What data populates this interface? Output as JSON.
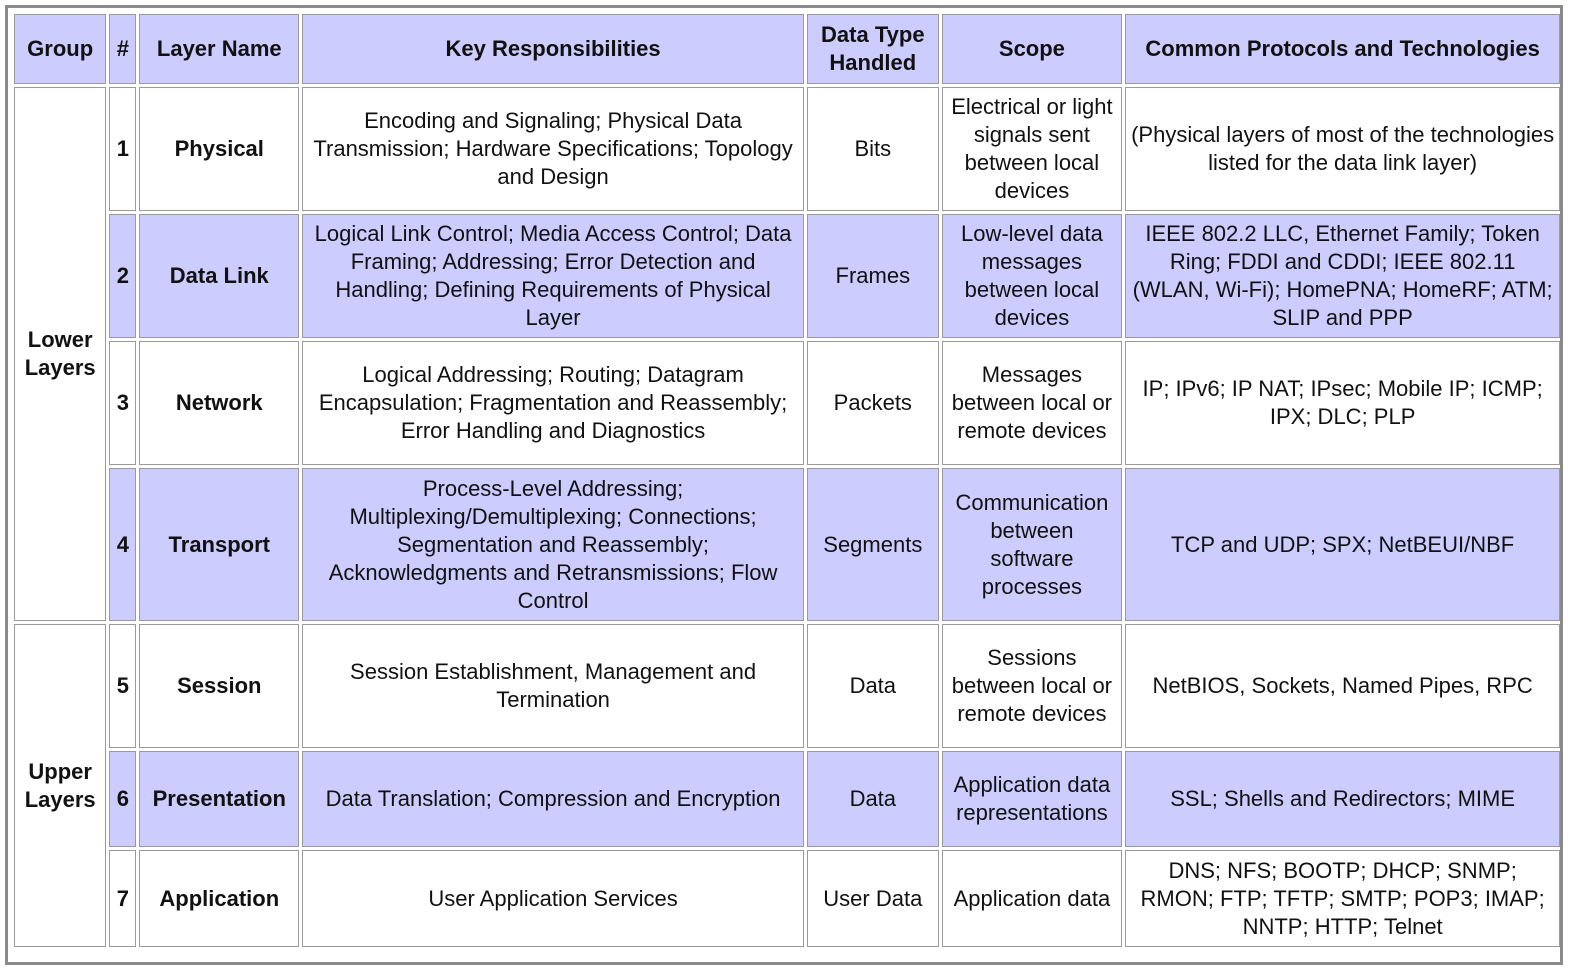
{
  "table": {
    "header": [
      "Group",
      "#",
      "Layer Name",
      "Key Responsibilities",
      "Data Type Handled",
      "Scope",
      "Common Protocols and Technologies"
    ],
    "groups": [
      {
        "label": "Lower Layers",
        "rows": [
          [
            "1",
            "Physical",
            "Encoding and Signaling; Physical Data Transmission; Hardware Specifications; Topology and Design",
            "Bits",
            "Electrical or light signals sent between local devices",
            "(Physical layers of most of the technologies listed for the data link layer)"
          ],
          [
            "2",
            "Data Link",
            "Logical Link Control; Media Access Control; Data Framing; Addressing; Error Detection and Handling; Defining Requirements of Physical Layer",
            "Frames",
            "Low-level data messages between local devices",
            "IEEE 802.2 LLC, Ethernet Family; Token Ring; FDDI and CDDI; IEEE 802.11 (WLAN, Wi-Fi); HomePNA; HomeRF; ATM; SLIP and PPP"
          ],
          [
            "3",
            "Network",
            "Logical Addressing; Routing; Datagram Encapsulation; Fragmentation and Reassembly; Error Handling and Diagnostics",
            "Packets",
            "Messages between local or remote devices",
            "IP; IPv6; IP NAT; IPsec; Mobile IP; ICMP; IPX; DLC; PLP"
          ],
          [
            "4",
            "Transport",
            "Process-Level Addressing; Multiplexing/Demultiplexing; Connections; Segmentation and Reassembly; Acknowledgments and Retransmissions; Flow Control",
            "Segments",
            "Communication between software processes",
            "TCP and UDP; SPX; NetBEUI/NBF"
          ]
        ]
      },
      {
        "label": "Upper Layers",
        "rows": [
          [
            "5",
            "Session",
            "Session Establishment, Management and Termination",
            "Data",
            "Sessions between local or remote devices",
            "NetBIOS, Sockets, Named Pipes, RPC"
          ],
          [
            "6",
            "Presentation",
            "Data Translation; Compression and Encryption",
            "Data",
            "Application data representations",
            "SSL; Shells and Redirectors; MIME"
          ],
          [
            "7",
            "Application",
            "User Application Services",
            "User Data",
            "Application data",
            "DNS; NFS; BOOTP; DHCP; SNMP; RMON; FTP; TFTP; SMTP; POP3; IMAP; NNTP; HTTP; Telnet"
          ]
        ]
      }
    ]
  }
}
